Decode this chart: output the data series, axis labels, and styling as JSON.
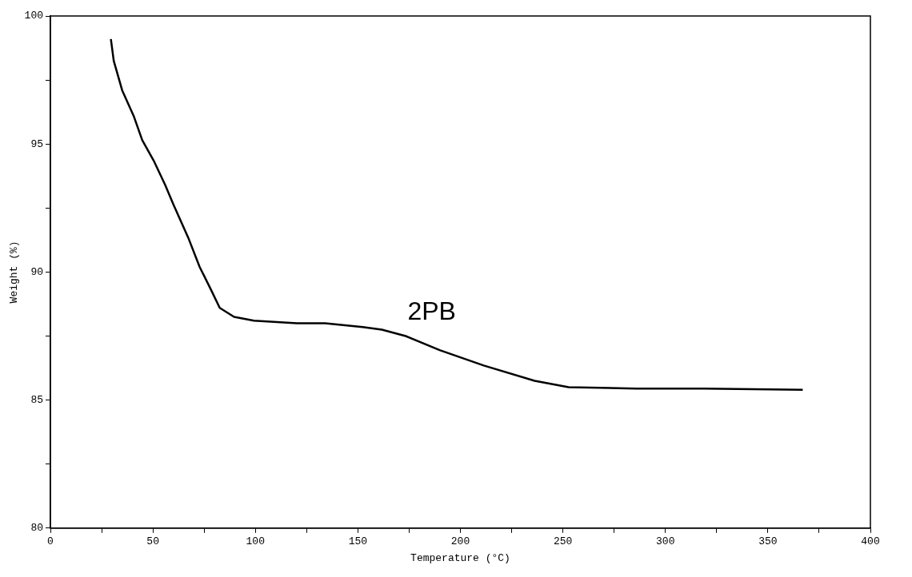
{
  "chart_data": {
    "type": "line",
    "xlabel": "Temperature (°C)",
    "ylabel": "Weight (%)",
    "x": [
      29.5,
      30.9,
      35.0,
      40.6,
      44.8,
      50.4,
      56.0,
      60.2,
      67.2,
      72.8,
      78.4,
      82.6,
      89.6,
      99.3,
      120.3,
      134,
      152.4,
      161.7,
      173.3,
      189.9,
      211.4,
      236.2,
      252.8,
      285.8,
      318.9,
      367
    ],
    "series": [
      {
        "color": "#000000",
        "values": [
          99.1,
          98.25,
          97.1,
          96.1,
          95.15,
          94.35,
          93.4,
          92.6,
          91.35,
          90.2,
          89.3,
          88.6,
          88.25,
          88.1,
          88.0,
          88.0,
          87.85,
          87.75,
          87.5,
          86.95,
          86.35,
          85.75,
          85.5,
          85.45,
          85.45,
          85.4
        ]
      }
    ],
    "xlim": [
      0,
      400
    ],
    "ylim": [
      80,
      100
    ],
    "xticks": [
      0,
      {
        "value": 25,
        "label": null
      },
      50,
      {
        "value": 75,
        "label": null
      },
      100,
      {
        "value": 125,
        "label": null
      },
      150,
      {
        "value": 175,
        "label": null
      },
      200,
      {
        "value": 225,
        "label": null
      },
      250,
      {
        "value": 275,
        "label": null
      },
      300,
      {
        "value": 325,
        "label": null
      },
      350,
      {
        "value": 375,
        "label": null
      },
      400
    ],
    "yticks": [
      80,
      {
        "value": 82.5,
        "label": null
      },
      85,
      {
        "value": 87.5,
        "label": null
      },
      90,
      {
        "value": 92.5,
        "label": null
      },
      95,
      {
        "value": 97.5,
        "label": null
      },
      100
    ],
    "annotations": [
      "2PB"
    ],
    "grid": false,
    "legend": false,
    "marker": "none",
    "line_style": "solid"
  }
}
